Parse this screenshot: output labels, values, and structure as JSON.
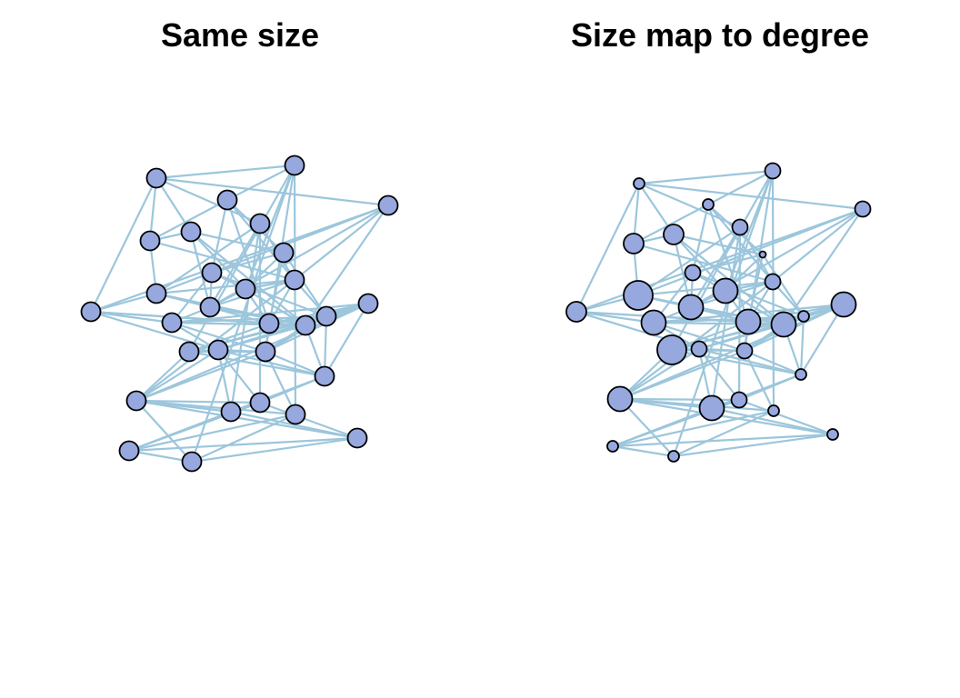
{
  "panels": [
    {
      "title": "Same size",
      "size_mode": "uniform"
    },
    {
      "title": "Size map to degree",
      "size_mode": "degree"
    }
  ],
  "style": {
    "node_fill": "#97a8de",
    "node_stroke": "#000000",
    "edge_color": "#9cc6dc"
  },
  "graph": {
    "node_count": 30,
    "edges": [
      [
        0,
        2
      ],
      [
        0,
        5
      ],
      [
        0,
        6
      ],
      [
        0,
        10
      ],
      [
        0,
        4
      ],
      [
        1,
        0
      ],
      [
        1,
        3
      ],
      [
        1,
        29
      ],
      [
        1,
        11
      ],
      [
        1,
        19
      ],
      [
        1,
        21
      ],
      [
        1,
        26
      ],
      [
        2,
        9
      ],
      [
        2,
        10
      ],
      [
        2,
        12
      ],
      [
        2,
        16
      ],
      [
        2,
        13
      ],
      [
        3,
        5
      ],
      [
        3,
        7
      ],
      [
        3,
        8
      ],
      [
        3,
        15
      ],
      [
        3,
        12
      ],
      [
        4,
        9
      ],
      [
        4,
        24
      ],
      [
        4,
        25
      ],
      [
        4,
        12
      ],
      [
        4,
        13
      ],
      [
        5,
        6
      ],
      [
        5,
        9
      ],
      [
        5,
        12
      ],
      [
        6,
        7
      ],
      [
        6,
        11
      ],
      [
        6,
        13
      ],
      [
        6,
        16
      ],
      [
        7,
        11
      ],
      [
        7,
        8
      ],
      [
        7,
        15
      ],
      [
        7,
        17
      ],
      [
        8,
        11
      ],
      [
        8,
        13
      ],
      [
        8,
        14
      ],
      [
        8,
        17
      ],
      [
        9,
        10
      ],
      [
        9,
        12
      ],
      [
        9,
        13
      ],
      [
        9,
        16
      ],
      [
        10,
        14
      ],
      [
        10,
        15
      ],
      [
        10,
        16
      ],
      [
        10,
        20
      ],
      [
        11,
        12
      ],
      [
        11,
        13
      ],
      [
        11,
        15
      ],
      [
        11,
        16
      ],
      [
        12,
        13
      ],
      [
        12,
        15
      ],
      [
        12,
        17
      ],
      [
        12,
        23
      ],
      [
        13,
        14
      ],
      [
        13,
        15
      ],
      [
        13,
        16
      ],
      [
        14,
        18
      ],
      [
        14,
        17
      ],
      [
        14,
        16
      ],
      [
        14,
        20
      ],
      [
        14,
        21
      ],
      [
        15,
        17
      ],
      [
        15,
        18
      ],
      [
        15,
        21
      ],
      [
        15,
        19
      ],
      [
        16,
        17
      ],
      [
        16,
        18
      ],
      [
        16,
        20
      ],
      [
        16,
        22
      ],
      [
        16,
        21
      ],
      [
        17,
        18
      ],
      [
        17,
        19
      ],
      [
        17,
        20
      ],
      [
        17,
        21
      ],
      [
        17,
        22
      ],
      [
        18,
        19
      ],
      [
        18,
        20
      ],
      [
        18,
        21
      ],
      [
        18,
        23
      ],
      [
        18,
        22
      ],
      [
        19,
        20
      ],
      [
        19,
        22
      ],
      [
        19,
        23
      ],
      [
        19,
        21
      ],
      [
        20,
        21
      ],
      [
        20,
        22
      ],
      [
        20,
        23
      ],
      [
        20,
        24
      ],
      [
        20,
        25
      ],
      [
        21,
        22
      ],
      [
        21,
        23
      ],
      [
        21,
        26
      ],
      [
        22,
        24
      ],
      [
        22,
        25
      ],
      [
        22,
        28
      ],
      [
        23,
        24
      ],
      [
        23,
        25
      ],
      [
        23,
        26
      ],
      [
        23,
        27
      ],
      [
        23,
        29
      ],
      [
        24,
        25
      ],
      [
        24,
        28
      ],
      [
        24,
        27
      ],
      [
        25,
        28
      ],
      [
        25,
        27
      ],
      [
        26,
        28
      ],
      [
        26,
        29
      ],
      [
        27,
        28
      ],
      [
        27,
        29
      ],
      [
        28,
        29
      ]
    ],
    "degree_sizes": [
      3,
      4,
      4,
      3,
      4,
      5,
      5,
      2,
      4,
      7,
      5,
      6,
      4,
      6,
      6,
      6,
      6,
      3,
      6,
      7,
      4,
      4,
      3,
      6,
      6,
      4,
      3,
      3,
      3,
      3
    ]
  }
}
